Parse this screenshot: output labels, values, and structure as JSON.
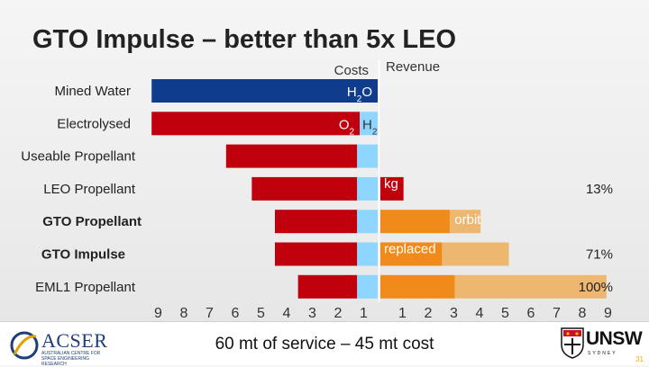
{
  "slide": {
    "title": "GTO Impulse – better than 5x LEO",
    "caption": "60 mt of service – 45 mt cost",
    "slide_number": "31"
  },
  "logos": {
    "acser": {
      "name": "ACSER",
      "subtitle": "AUSTRALIAN CENTRE FOR SPACE ENGINEERING RESEARCH"
    },
    "unsw": {
      "name": "UNSW",
      "subtitle": "SYDNEY"
    }
  },
  "chart_data": {
    "type": "bar",
    "orientation": "horizontal",
    "subtype": "diverging",
    "column_headers": {
      "left": "Costs",
      "right": "Revenue"
    },
    "colors": {
      "dark_blue": "#0f3c8c",
      "red": "#c0000c",
      "light_blue": "#8ed6ff",
      "orange": "#f08a1a",
      "light_orange": "#eeb770",
      "white_text": "#ffffff",
      "label_text": "#222222"
    },
    "axis": {
      "left_ticks": [
        "9",
        "8",
        "7",
        "6",
        "5",
        "4",
        "3",
        "2",
        "1"
      ],
      "right_ticks": [
        "1",
        "2",
        "3",
        "4",
        "5",
        "6",
        "7",
        "8",
        "9"
      ],
      "left_range": [
        0,
        9
      ],
      "right_range": [
        0,
        9
      ]
    },
    "rows": [
      {
        "label": "Mined Water",
        "bold": false,
        "cost": [
          {
            "from": 0,
            "to": 8.8,
            "color": "dark_blue",
            "text": "H2O"
          }
        ],
        "revenue": []
      },
      {
        "label": "Electrolysed",
        "bold": false,
        "cost": [
          {
            "from": 0.7,
            "to": 8.8,
            "color": "red",
            "text": "O2"
          },
          {
            "from": 0,
            "to": 0.7,
            "color": "light_blue",
            "text": "H2"
          }
        ],
        "revenue": []
      },
      {
        "label": "Useable Propellant",
        "bold": false,
        "cost": [
          {
            "from": 0.8,
            "to": 5.9,
            "color": "red"
          },
          {
            "from": 0,
            "to": 0.8,
            "color": "light_blue"
          }
        ],
        "revenue": []
      },
      {
        "label": "LEO Propellant",
        "bold": false,
        "cost": [
          {
            "from": 0.8,
            "to": 4.9,
            "color": "red"
          },
          {
            "from": 0,
            "to": 0.8,
            "color": "light_blue"
          }
        ],
        "revenue": [
          {
            "from": 0,
            "to": 0.9,
            "color": "red",
            "text": "kg"
          }
        ],
        "right_note": "13%"
      },
      {
        "label": "GTO Propellant",
        "bold": true,
        "cost": [
          {
            "from": 0.8,
            "to": 4.0,
            "color": "red"
          },
          {
            "from": 0,
            "to": 0.8,
            "color": "light_blue"
          }
        ],
        "revenue": [
          {
            "from": 0,
            "to": 2.7,
            "color": "orange"
          },
          {
            "from": 2.7,
            "to": 3.9,
            "color": "light_orange"
          }
        ],
        "bar_text": "orbit"
      },
      {
        "label": "GTO Impulse",
        "bold": true,
        "cost": [
          {
            "from": 0.8,
            "to": 4.0,
            "color": "red"
          },
          {
            "from": 0,
            "to": 0.8,
            "color": "light_blue"
          }
        ],
        "revenue": [
          {
            "from": 0,
            "to": 2.4,
            "color": "orange",
            "text": "replaced"
          },
          {
            "from": 2.4,
            "to": 5.0,
            "color": "light_orange"
          }
        ],
        "right_note": "71%"
      },
      {
        "label": "EML1 Propellant",
        "bold": false,
        "cost": [
          {
            "from": 0.8,
            "to": 3.1,
            "color": "red"
          },
          {
            "from": 0,
            "to": 0.8,
            "color": "light_blue"
          }
        ],
        "revenue": [
          {
            "from": 0,
            "to": 2.9,
            "color": "orange"
          },
          {
            "from": 2.9,
            "to": 8.8,
            "color": "light_orange"
          }
        ],
        "right_note": "100%"
      }
    ]
  }
}
